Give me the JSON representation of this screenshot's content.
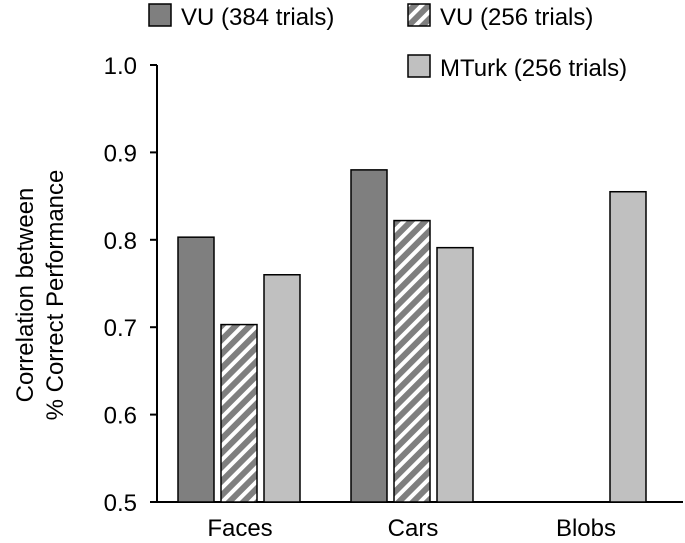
{
  "chart_data": {
    "type": "bar",
    "categories": [
      "Faces",
      "Cars",
      "Blobs"
    ],
    "series": [
      {
        "name": "VU (384 trials)",
        "values": [
          0.803,
          0.88,
          null
        ],
        "color": "#7f7f7f",
        "pattern": "solid"
      },
      {
        "name": "VU (256 trials)",
        "values": [
          0.703,
          0.822,
          null
        ],
        "color": "#7f7f7f",
        "pattern": "diagonal-stripes"
      },
      {
        "name": "MTurk (256 trials)",
        "values": [
          0.76,
          0.791,
          0.855
        ],
        "color": "#c0c0c0",
        "pattern": "solid"
      }
    ],
    "ylabel_lines": [
      "Correlation between",
      "% Correct Performance"
    ],
    "xlabel": "",
    "title": "",
    "ylim": [
      0.5,
      1.0
    ],
    "yticks": [
      "0.5",
      "0.6",
      "0.7",
      "0.8",
      "0.9",
      "1.0"
    ],
    "grid": false,
    "legend_position": "top"
  }
}
